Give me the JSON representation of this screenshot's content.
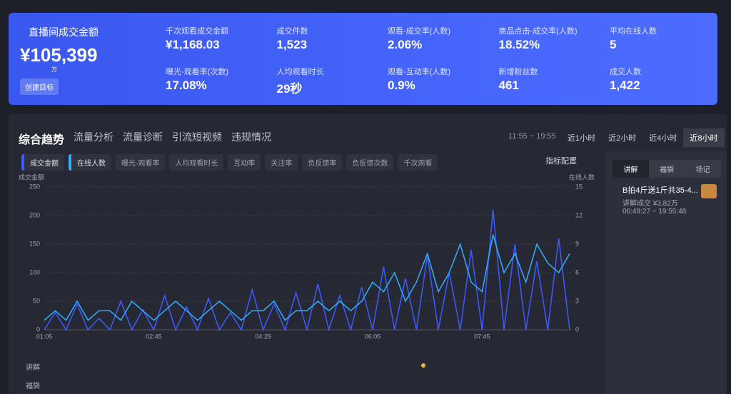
{
  "header": {
    "title": "直播间成交金额",
    "value": "¥105,399",
    "unit": "万",
    "button": "创建目标",
    "metrics": [
      {
        "label": "千次观看成交金额",
        "value": "¥1,168.03"
      },
      {
        "label": "成交件数",
        "value": "1,523"
      },
      {
        "label": "观看-成交率(人数)",
        "value": "2.06%"
      },
      {
        "label": "商品点击-成交率(人数)",
        "value": "18.52%"
      },
      {
        "label": "平均在线人数",
        "value": "5"
      },
      {
        "label": "曝光-观看率(次数)",
        "value": "17.08%"
      },
      {
        "label": "人均观看时长",
        "value": "29秒"
      },
      {
        "label": "观看-互动率(人数)",
        "value": "0.9%"
      },
      {
        "label": "新增粉丝数",
        "value": "461"
      },
      {
        "label": "成交人数",
        "value": "1,422"
      }
    ]
  },
  "tabs": [
    "综合趋势",
    "流量分析",
    "流量诊断",
    "引流短视频",
    "违规情况"
  ],
  "time_range": "11:55 ~ 19:55",
  "range_buttons": [
    "近1小时",
    "近2小时",
    "近4小时",
    "近8小时"
  ],
  "other_metrics": [
    "曝光-观看率",
    "人均观看时长",
    "互动率",
    "关注率",
    "负反馈率",
    "负反馈次数",
    "千次观看"
  ],
  "config_button": "指标配置",
  "side_panel": {
    "tabs": [
      "讲解",
      "福袋",
      "场记"
    ],
    "item_title": "B拍4斤送1斤共35-4...",
    "item_sales": "讲解成交 ¥3.82万",
    "item_time": "06:49:27 ~ 19:55:48"
  },
  "bottom_rows": [
    "讲解",
    "福袋"
  ],
  "chart_data": {
    "type": "line",
    "y_label": "成交金额",
    "y2_label": "在线人数",
    "categories": [
      "01:05",
      null,
      null,
      null,
      null,
      null,
      null,
      null,
      null,
      null,
      "02:45",
      null,
      null,
      null,
      null,
      null,
      null,
      null,
      null,
      null,
      "04:25",
      null,
      null,
      null,
      null,
      null,
      null,
      null,
      null,
      null,
      "06:05",
      null,
      null,
      null,
      null,
      null,
      null,
      null,
      null,
      null,
      "07:45",
      null,
      null,
      null,
      null,
      null,
      null,
      null,
      null
    ],
    "series": [
      {
        "name": "成交金额",
        "color": "#3d5cff",
        "values": [
          0,
          30,
          0,
          45,
          0,
          20,
          0,
          50,
          0,
          35,
          0,
          60,
          0,
          40,
          0,
          55,
          0,
          30,
          0,
          70,
          0,
          45,
          0,
          65,
          0,
          80,
          0,
          60,
          0,
          75,
          0,
          110,
          0,
          90,
          0,
          130,
          0,
          100,
          0,
          140,
          0,
          210,
          0,
          150,
          0,
          120,
          0,
          160,
          0
        ]
      },
      {
        "name": "在线人数",
        "color": "#2fb0ff",
        "axis": "y2",
        "values": [
          1,
          2,
          1,
          3,
          1,
          2,
          2,
          1,
          3,
          2,
          1,
          2,
          3,
          2,
          1,
          2,
          3,
          2,
          1,
          2,
          2,
          3,
          1,
          2,
          2,
          3,
          2,
          3,
          2,
          3,
          5,
          4,
          6,
          3,
          5,
          8,
          4,
          6,
          9,
          5,
          4,
          10,
          6,
          8,
          5,
          9,
          7,
          6,
          8
        ]
      }
    ],
    "ylim": [
      0,
      250
    ],
    "yticks": [
      0,
      50,
      100,
      150,
      200,
      250
    ],
    "y2lim": [
      0,
      15
    ],
    "y2ticks": [
      0,
      3,
      6,
      9,
      12,
      15
    ],
    "grid": true
  }
}
